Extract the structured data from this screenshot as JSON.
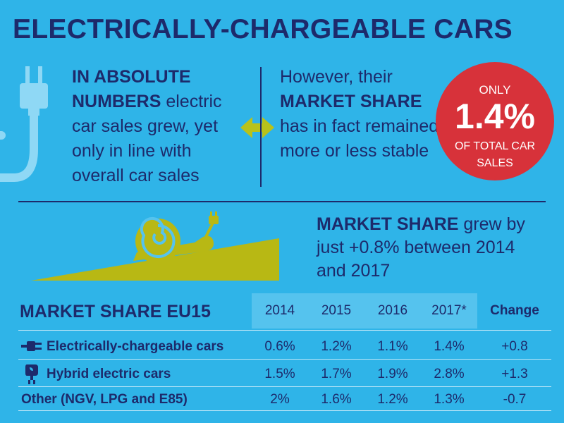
{
  "header": {
    "title": "ELECTRICALLY-CHARGEABLE CARS"
  },
  "left_panel": {
    "bold_text": "IN ABSOLUTE NUMBERS",
    "text": " electric car sales grew, yet only in line with overall car sales"
  },
  "right_panel": {
    "text_before": "However, their ",
    "bold_text": "MARKET SHARE",
    "text_after": " has in fact remained more or less stable"
  },
  "badge": {
    "top": "ONLY",
    "value": "1.4%",
    "bottom": "OF TOTAL CAR SALES"
  },
  "growth": {
    "bold_text": "MARKET SHARE",
    "text": " grew by just +0.8% between 2014 and 2017"
  },
  "table": {
    "title": "MARKET SHARE EU15",
    "years": [
      "2014",
      "2015",
      "2016",
      "2017*"
    ],
    "change_header": "Change",
    "rows": [
      {
        "label": "Electrically-chargeable cars",
        "icon": "plug-icon",
        "values": [
          "0.6%",
          "1.2%",
          "1.1%",
          "1.4%"
        ],
        "change": "+0.8"
      },
      {
        "label": "Hybrid electric cars",
        "icon": "hybrid-plug-icon",
        "values": [
          "1.5%",
          "1.7%",
          "1.9%",
          "2.8%"
        ],
        "change": "+1.3"
      },
      {
        "label": "Other (NGV, LPG and E85)",
        "icon": "",
        "values": [
          "2%",
          "1.6%",
          "1.2%",
          "1.3%"
        ],
        "change": "-0.7"
      }
    ]
  },
  "colors": {
    "background": "#2fb4e8",
    "navy": "#1d2a6b",
    "badge_red": "#d7323a",
    "olive": "#b8b814",
    "year_header_bg": "#55c3ee"
  }
}
